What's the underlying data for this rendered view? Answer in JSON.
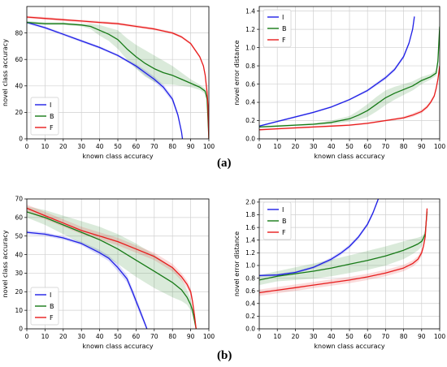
{
  "captions": [
    "(a)",
    "(b)"
  ],
  "colors": {
    "I": "#1f1fe6",
    "B": "#167a16",
    "F": "#e81c1c"
  },
  "chart_data": [
    {
      "id": "a-left",
      "type": "line",
      "xlabel": "known class accuracy",
      "ylabel": "novel class accuracy",
      "xlim": [
        0,
        100
      ],
      "ylim": [
        0,
        100
      ],
      "xticks": [
        0,
        10,
        20,
        30,
        40,
        50,
        60,
        70,
        80,
        90,
        100
      ],
      "yticks": [
        0,
        20,
        40,
        60,
        80
      ],
      "grid": true,
      "legend": "bottom-left",
      "series": [
        {
          "name": "I",
          "color": "#1f1fe6",
          "x": [
            0,
            10,
            20,
            30,
            40,
            50,
            55,
            60,
            65,
            70,
            75,
            80,
            83,
            85,
            85.5
          ],
          "y": [
            88,
            84,
            79,
            74,
            69,
            63,
            59,
            55,
            50,
            45,
            39,
            30,
            18,
            5,
            0
          ],
          "band": [
            1,
            1,
            1,
            1,
            1,
            1,
            1,
            1.5,
            2,
            2,
            2,
            2,
            2,
            2,
            1
          ]
        },
        {
          "name": "B",
          "color": "#167a16",
          "x": [
            0,
            10,
            20,
            30,
            35,
            40,
            45,
            50,
            55,
            60,
            65,
            70,
            75,
            80,
            85,
            90,
            95,
            98,
            99,
            100
          ],
          "y": [
            88,
            87,
            87,
            86,
            85,
            82,
            79,
            75,
            68,
            62,
            57,
            53,
            50,
            48,
            45,
            42,
            39,
            36,
            30,
            0
          ],
          "band": [
            1,
            1,
            1,
            1,
            2,
            4,
            5,
            7,
            8,
            9,
            10,
            10,
            9,
            7,
            5,
            3,
            2,
            2,
            2,
            1
          ]
        },
        {
          "name": "F",
          "color": "#e81c1c",
          "x": [
            0,
            10,
            20,
            30,
            40,
            50,
            60,
            70,
            80,
            85,
            90,
            95,
            97,
            98,
            99,
            99.5,
            100
          ],
          "y": [
            92,
            91,
            90,
            89,
            88,
            87,
            85,
            83,
            80,
            77,
            72,
            62,
            55,
            48,
            35,
            25,
            0
          ],
          "band": [
            1,
            1,
            1,
            1,
            1,
            1,
            1,
            1,
            1,
            1,
            1,
            1,
            1,
            1,
            1,
            1,
            1
          ]
        }
      ]
    },
    {
      "id": "a-right",
      "type": "line",
      "xlabel": "known class accuracy",
      "ylabel": "novel error distance",
      "xlim": [
        0,
        100
      ],
      "ylim": [
        0,
        1.45
      ],
      "xticks": [
        0,
        10,
        20,
        30,
        40,
        50,
        60,
        70,
        80,
        90,
        100
      ],
      "yticks": [
        0.0,
        0.2,
        0.4,
        0.6,
        0.8,
        1.0,
        1.2,
        1.4
      ],
      "grid": true,
      "legend": "top-left",
      "series": [
        {
          "name": "I",
          "color": "#1f1fe6",
          "x": [
            0,
            10,
            20,
            30,
            40,
            50,
            60,
            70,
            75,
            80,
            83,
            85,
            86
          ],
          "y": [
            0.14,
            0.19,
            0.24,
            0.29,
            0.35,
            0.43,
            0.53,
            0.67,
            0.76,
            0.9,
            1.05,
            1.2,
            1.34
          ],
          "band": [
            0.01,
            0.01,
            0.01,
            0.01,
            0.01,
            0.01,
            0.015,
            0.02,
            0.02,
            0.02,
            0.02,
            0.02,
            0.02
          ]
        },
        {
          "name": "B",
          "color": "#167a16",
          "x": [
            0,
            10,
            20,
            30,
            40,
            50,
            55,
            60,
            65,
            70,
            75,
            80,
            85,
            90,
            95,
            98,
            99,
            100
          ],
          "y": [
            0.13,
            0.14,
            0.15,
            0.16,
            0.18,
            0.22,
            0.26,
            0.31,
            0.38,
            0.45,
            0.5,
            0.54,
            0.58,
            0.64,
            0.68,
            0.72,
            0.85,
            1.23
          ],
          "band": [
            0.01,
            0.01,
            0.01,
            0.01,
            0.02,
            0.03,
            0.05,
            0.07,
            0.08,
            0.08,
            0.07,
            0.06,
            0.05,
            0.04,
            0.03,
            0.03,
            0.05,
            0.05
          ]
        },
        {
          "name": "F",
          "color": "#e81c1c",
          "x": [
            0,
            10,
            20,
            30,
            40,
            50,
            60,
            70,
            80,
            85,
            90,
            93,
            95,
            97,
            98,
            99,
            100
          ],
          "y": [
            0.1,
            0.11,
            0.12,
            0.13,
            0.14,
            0.15,
            0.17,
            0.2,
            0.23,
            0.26,
            0.3,
            0.35,
            0.4,
            0.47,
            0.55,
            0.65,
            0.8
          ],
          "band": [
            0.01,
            0.01,
            0.01,
            0.01,
            0.01,
            0.01,
            0.01,
            0.01,
            0.015,
            0.02,
            0.02,
            0.02,
            0.02,
            0.02,
            0.02,
            0.02,
            0.02
          ]
        }
      ]
    },
    {
      "id": "b-left",
      "type": "line",
      "xlabel": "known class accuracy",
      "ylabel": "novel class accuracy",
      "xlim": [
        0,
        100
      ],
      "ylim": [
        0,
        70
      ],
      "xticks": [
        0,
        10,
        20,
        30,
        40,
        50,
        60,
        70,
        80,
        90,
        100
      ],
      "yticks": [
        0,
        10,
        20,
        30,
        40,
        50,
        60,
        70
      ],
      "grid": true,
      "legend": "bottom-left",
      "series": [
        {
          "name": "I",
          "color": "#1f1fe6",
          "x": [
            0,
            10,
            20,
            30,
            40,
            45,
            50,
            55,
            58,
            60,
            62,
            64,
            66
          ],
          "y": [
            52,
            51,
            49,
            46,
            41,
            38,
            33,
            27,
            20,
            15,
            10,
            5,
            0
          ],
          "band": [
            1,
            1,
            1,
            1,
            1.5,
            1.5,
            2,
            2,
            2,
            2,
            2,
            1.5,
            1
          ]
        },
        {
          "name": "B",
          "color": "#167a16",
          "x": [
            0,
            10,
            20,
            30,
            40,
            50,
            60,
            70,
            80,
            85,
            88,
            90,
            91,
            92,
            93
          ],
          "y": [
            63,
            60,
            56,
            52,
            48,
            43,
            37,
            31,
            25,
            21,
            17,
            13,
            10,
            5,
            0
          ],
          "band": [
            3,
            4,
            5,
            6,
            7,
            8,
            9,
            9,
            8,
            6,
            4,
            3,
            2,
            1,
            0.5
          ]
        },
        {
          "name": "F",
          "color": "#e81c1c",
          "x": [
            0,
            10,
            20,
            30,
            40,
            50,
            60,
            70,
            80,
            85,
            88,
            90,
            91,
            92,
            93
          ],
          "y": [
            65,
            61,
            57,
            53,
            50,
            47,
            43,
            39,
            33,
            28,
            24,
            20,
            15,
            8,
            0
          ],
          "band": [
            2,
            2,
            2,
            2,
            2,
            2,
            2,
            2,
            2,
            2,
            2,
            2,
            2,
            1.5,
            1
          ]
        }
      ]
    },
    {
      "id": "b-right",
      "type": "line",
      "xlabel": "known class accuracy",
      "ylabel": "novel error distance",
      "xlim": [
        0,
        100
      ],
      "ylim": [
        0,
        2.05
      ],
      "xticks": [
        0,
        10,
        20,
        30,
        40,
        50,
        60,
        70,
        80,
        90,
        100
      ],
      "yticks": [
        0.0,
        0.2,
        0.4,
        0.6,
        0.8,
        1.0,
        1.2,
        1.4,
        1.6,
        1.8,
        2.0
      ],
      "grid": true,
      "legend": "top-left",
      "series": [
        {
          "name": "I",
          "color": "#1f1fe6",
          "x": [
            0,
            10,
            20,
            30,
            40,
            45,
            50,
            55,
            60,
            63,
            66
          ],
          "y": [
            0.84,
            0.85,
            0.89,
            0.97,
            1.1,
            1.19,
            1.3,
            1.45,
            1.65,
            1.83,
            2.05
          ],
          "band": [
            0.02,
            0.02,
            0.02,
            0.02,
            0.03,
            0.03,
            0.03,
            0.03,
            0.03,
            0.03,
            0.03
          ]
        },
        {
          "name": "B",
          "color": "#167a16",
          "x": [
            0,
            10,
            20,
            30,
            40,
            50,
            60,
            70,
            80,
            85,
            88,
            90,
            91,
            92,
            93
          ],
          "y": [
            0.77,
            0.83,
            0.87,
            0.91,
            0.96,
            1.02,
            1.08,
            1.15,
            1.24,
            1.3,
            1.34,
            1.38,
            1.43,
            1.5,
            1.85
          ],
          "band": [
            0.08,
            0.08,
            0.1,
            0.12,
            0.13,
            0.14,
            0.15,
            0.15,
            0.14,
            0.12,
            0.1,
            0.08,
            0.06,
            0.05,
            0.04
          ]
        },
        {
          "name": "F",
          "color": "#e81c1c",
          "x": [
            0,
            10,
            20,
            30,
            40,
            50,
            60,
            70,
            80,
            85,
            88,
            90,
            91,
            92,
            93
          ],
          "y": [
            0.57,
            0.61,
            0.65,
            0.69,
            0.73,
            0.77,
            0.82,
            0.88,
            0.96,
            1.03,
            1.1,
            1.2,
            1.3,
            1.45,
            1.9
          ],
          "band": [
            0.05,
            0.05,
            0.05,
            0.05,
            0.05,
            0.05,
            0.05,
            0.05,
            0.05,
            0.05,
            0.05,
            0.05,
            0.04,
            0.03,
            0.02
          ]
        }
      ]
    }
  ]
}
